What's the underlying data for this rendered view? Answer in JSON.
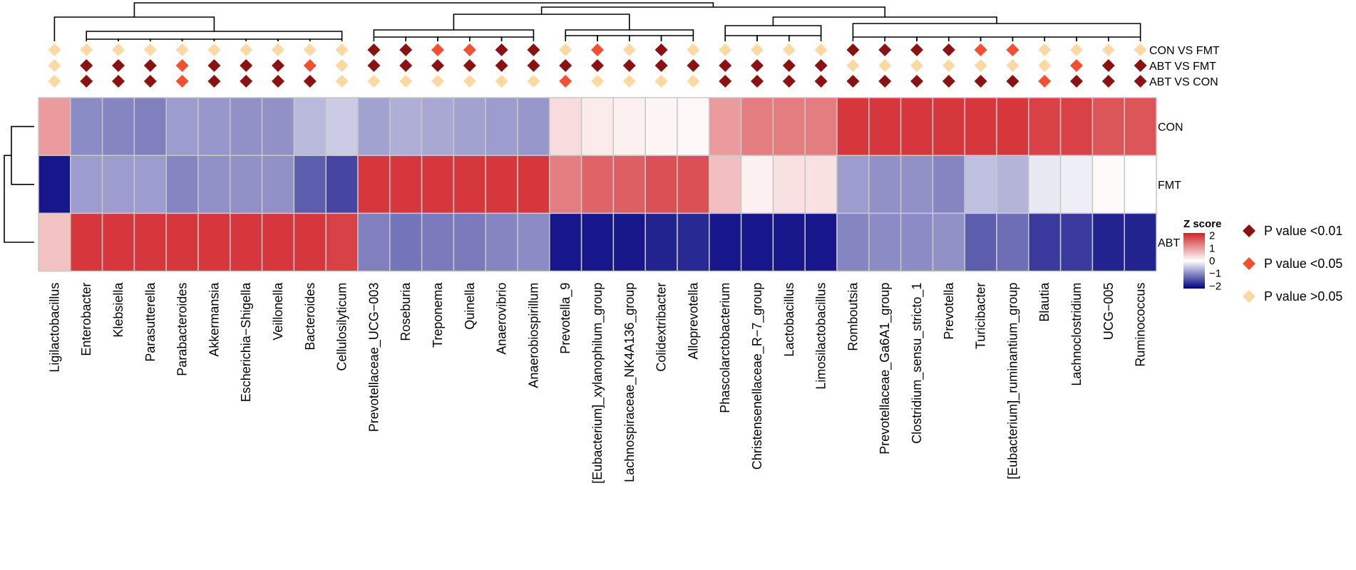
{
  "chart_data": {
    "type": "heatmap",
    "title": "",
    "columns": [
      "Ligilactobacillus",
      "Enterobacter",
      "Klebsiella",
      "Parasutterella",
      "Parabacteroides",
      "Akkermansia",
      "Escherichia−Shigella",
      "Veillonella",
      "Bacteroides",
      "Cellulosilyticum",
      "Prevotellaceae_UCG−003",
      "Roseburia",
      "Treponema",
      "Quinella",
      "Anaerovibrio",
      "Anaerobiospirillum",
      "Prevotella_9",
      "[Eubacterium]_xylanophilum_group",
      "Lachnospiraceae_NK4A136_group",
      "Colidextribacter",
      "Alloprevotella",
      "Phascolarctobacterium",
      "Christensenellaceae_R−7_group",
      "Lactobacillus",
      "Limosilactobacillus",
      "Romboutsia",
      "Prevotellaceae_Ga6A1_group",
      "Clostridium_sensu_stricto_1",
      "Prevotella",
      "Turicibacter",
      "[Eubacterium]_ruminantium_group",
      "Blautia",
      "Lachnoclostridium",
      "UCG−005",
      "Ruminococcus"
    ],
    "rows": [
      "CON",
      "FMT",
      "ABT"
    ],
    "z_scores": [
      [
        1.0,
        -1.0,
        -1.05,
        -1.1,
        -0.85,
        -0.9,
        -0.95,
        -0.95,
        -0.6,
        -0.45,
        -0.8,
        -0.7,
        -0.75,
        -0.8,
        -0.85,
        -0.9,
        0.35,
        0.2,
        0.15,
        0.1,
        0.08,
        1.0,
        1.3,
        1.3,
        1.3,
        2.0,
        2.0,
        2.0,
        2.0,
        2.0,
        2.0,
        1.9,
        1.9,
        1.7,
        1.7
      ],
      [
        -2.0,
        -0.85,
        -0.85,
        -0.85,
        -1.05,
        -0.95,
        -0.95,
        -0.95,
        -1.4,
        -1.6,
        2.0,
        2.0,
        2.0,
        2.0,
        2.0,
        2.0,
        1.3,
        1.55,
        1.6,
        1.75,
        1.75,
        0.65,
        0.15,
        0.3,
        0.3,
        -0.85,
        -0.95,
        -0.95,
        -1.05,
        -0.55,
        -0.65,
        -0.2,
        -0.15,
        0.05,
        0.0
      ],
      [
        0.6,
        2.0,
        2.0,
        2.0,
        2.0,
        2.0,
        2.0,
        2.0,
        2.0,
        1.9,
        -1.1,
        -1.2,
        -1.15,
        -1.15,
        -1.05,
        -1.0,
        -2.0,
        -2.0,
        -2.0,
        -1.9,
        -1.85,
        -2.0,
        -2.0,
        -2.0,
        -2.0,
        -1.05,
        -1.0,
        -1.0,
        -0.95,
        -1.4,
        -1.25,
        -1.7,
        -1.7,
        -1.9,
        -1.9
      ]
    ],
    "comparisons": [
      "CON VS FMT",
      "ABT VS FMT",
      "ABT VS CON"
    ],
    "significance": [
      [
        ">0.05",
        ">0.05",
        ">0.05",
        ">0.05",
        ">0.05",
        ">0.05",
        ">0.05",
        ">0.05",
        ">0.05",
        ">0.05",
        "<0.01",
        "<0.01",
        "<0.05",
        "<0.05",
        "<0.01",
        "<0.01",
        ">0.05",
        "<0.05",
        ">0.05",
        "<0.01",
        ">0.05",
        ">0.05",
        ">0.05",
        ">0.05",
        ">0.05",
        "<0.01",
        "<0.01",
        "<0.01",
        "<0.01",
        "<0.05",
        "<0.05",
        ">0.05",
        ">0.05",
        ">0.05",
        ">0.05"
      ],
      [
        ">0.05",
        "<0.01",
        "<0.01",
        "<0.01",
        "<0.05",
        "<0.01",
        "<0.01",
        "<0.01",
        "<0.05",
        ">0.05",
        "<0.01",
        "<0.01",
        "<0.01",
        "<0.01",
        "<0.01",
        "<0.01",
        "<0.01",
        "<0.01",
        "<0.01",
        "<0.01",
        "<0.01",
        "<0.01",
        "<0.01",
        "<0.01",
        "<0.01",
        ">0.05",
        ">0.05",
        ">0.05",
        ">0.05",
        ">0.05",
        ">0.05",
        ">0.05",
        "<0.05",
        "<0.01",
        "<0.01"
      ],
      [
        ">0.05",
        "<0.01",
        "<0.01",
        "<0.01",
        "<0.05",
        "<0.01",
        "<0.01",
        "<0.01",
        "<0.01",
        ">0.05",
        ">0.05",
        ">0.05",
        ">0.05",
        ">0.05",
        ">0.05",
        ">0.05",
        "<0.05",
        ">0.05",
        ">0.05",
        ">0.05",
        ">0.05",
        "<0.01",
        "<0.01",
        "<0.01",
        "<0.01",
        "<0.01",
        "<0.01",
        "<0.01",
        "<0.01",
        "<0.01",
        "<0.01",
        "<0.05",
        "<0.01",
        "<0.01",
        "<0.01"
      ]
    ],
    "color_scale": {
      "title": "Z score",
      "ticks": [
        "2",
        "1",
        "0",
        "−1",
        "−2"
      ],
      "tick_values": [
        2,
        1,
        0,
        -1,
        -2
      ],
      "range": [
        -2.2,
        2.2
      ],
      "low_color": "#00007f",
      "mid_color": "#ffffff",
      "high_color": "#d22328"
    },
    "pvalue_legend": [
      {
        "key": "<0.01",
        "label": "P value <0.01",
        "color": "#8b1212"
      },
      {
        "key": "<0.05",
        "label": "P value <0.05",
        "color": "#f25030"
      },
      {
        "key": ">0.05",
        "label": "P value >0.05",
        "color": "#fcd9a4"
      }
    ]
  }
}
